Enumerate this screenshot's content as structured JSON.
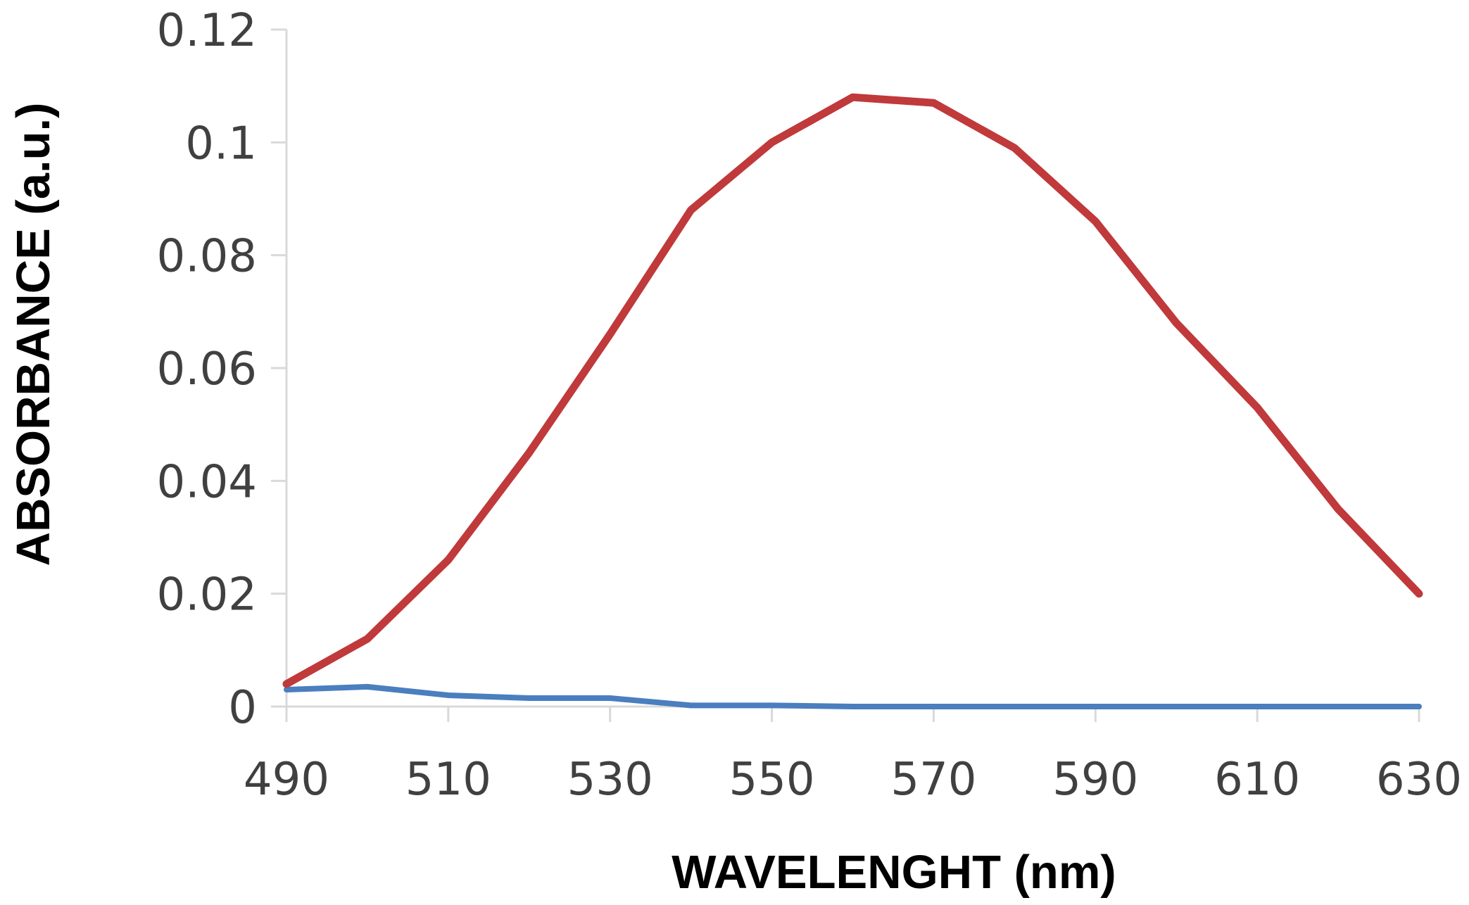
{
  "chart_data": {
    "type": "line",
    "title": "",
    "xlabel": "WAVELENGHT (nm)",
    "ylabel": "ABSORBANCE (a.u.)",
    "xlim": [
      490,
      630
    ],
    "ylim": [
      0,
      0.12
    ],
    "x_ticks": [
      490,
      510,
      530,
      550,
      570,
      590,
      610,
      630
    ],
    "x_tick_labels": [
      "490",
      "510",
      "530",
      "550",
      "570",
      "590",
      "610",
      "630"
    ],
    "y_ticks": [
      0,
      0.02,
      0.04,
      0.06,
      0.08,
      0.1,
      0.12
    ],
    "y_tick_labels": [
      "0",
      "0.02",
      "0.04",
      "0.06",
      "0.08",
      "0.1",
      "0.12"
    ],
    "grid": false,
    "x": [
      490,
      500,
      510,
      520,
      530,
      540,
      550,
      560,
      570,
      580,
      590,
      600,
      610,
      620,
      630
    ],
    "series": [
      {
        "name": "red",
        "color": "#c0393b",
        "values": [
          0.004,
          0.012,
          0.026,
          0.045,
          0.066,
          0.088,
          0.1,
          0.108,
          0.107,
          0.099,
          0.086,
          0.068,
          0.053,
          0.035,
          0.02
        ]
      },
      {
        "name": "blue",
        "color": "#4a7ebf",
        "values": [
          0.003,
          0.0035,
          0.002,
          0.0015,
          0.0015,
          0.0002,
          0.0002,
          0,
          0,
          0,
          0,
          0,
          0,
          0,
          0
        ]
      }
    ]
  }
}
